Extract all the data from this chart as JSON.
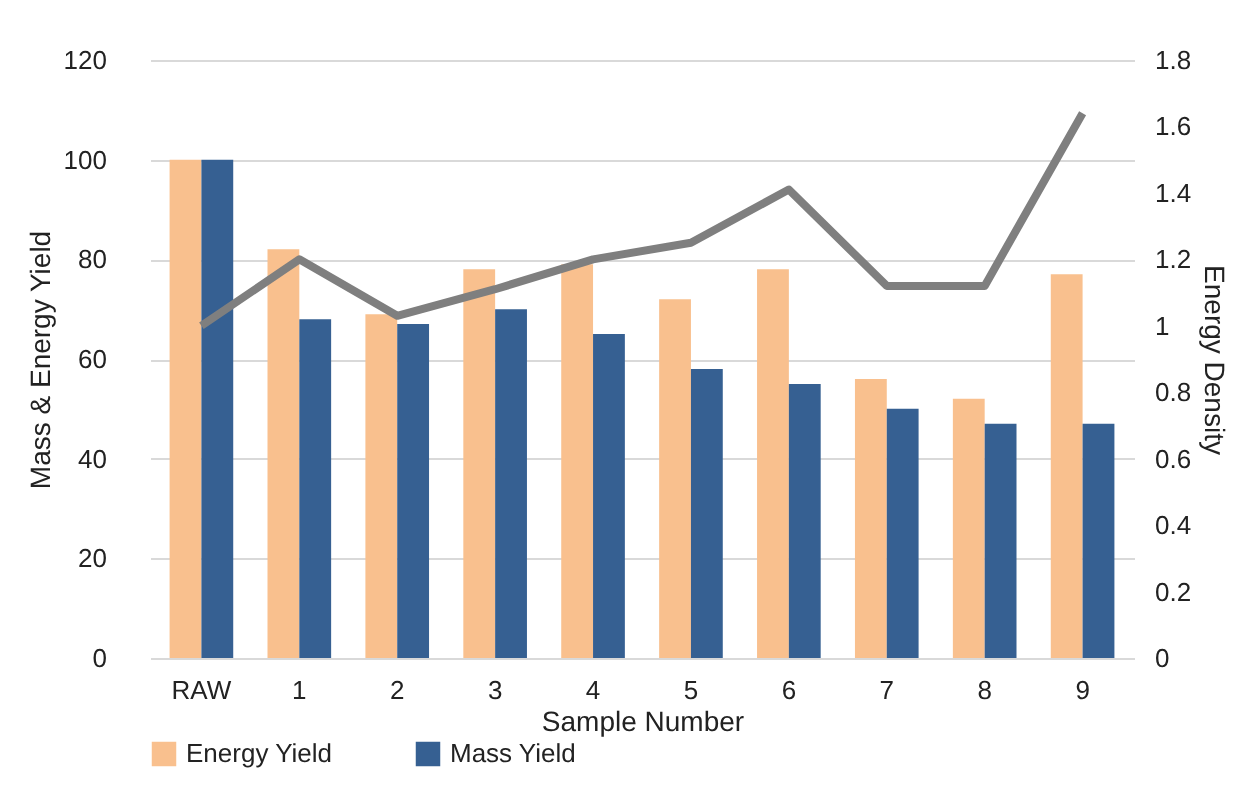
{
  "chart_data": {
    "type": "bar",
    "xlabel": "Sample Number",
    "ylabel": "Mass & Energy Yield",
    "y2label": "Energy Density",
    "categories": [
      "RAW",
      "1",
      "2",
      "3",
      "4",
      "5",
      "6",
      "7",
      "8",
      "9"
    ],
    "series": [
      {
        "name": "Energy Yield",
        "color": "#f9c08e",
        "values": [
          100,
          82,
          69,
          78,
          79,
          72,
          78,
          56,
          52,
          77
        ]
      },
      {
        "name": "Mass Yield",
        "color": "#366092",
        "values": [
          100,
          68,
          67,
          70,
          65,
          58,
          55,
          50,
          47,
          47
        ]
      },
      {
        "type": "line",
        "axis": "y2",
        "color": "#7f7f7f",
        "values": [
          1.0,
          1.2,
          1.03,
          1.11,
          1.2,
          1.25,
          1.41,
          1.12,
          1.12,
          1.64
        ]
      }
    ],
    "ylim": [
      0,
      120
    ],
    "yticks": [
      0,
      20,
      40,
      60,
      80,
      100,
      120
    ],
    "y2lim": [
      0,
      1.8
    ],
    "y2ticks": [
      0,
      0.2,
      0.4,
      0.6,
      0.8,
      1,
      1.2,
      1.4,
      1.6,
      1.8
    ],
    "grid": "y",
    "legend": "bottom",
    "marker": "none",
    "line_style": "solid"
  }
}
